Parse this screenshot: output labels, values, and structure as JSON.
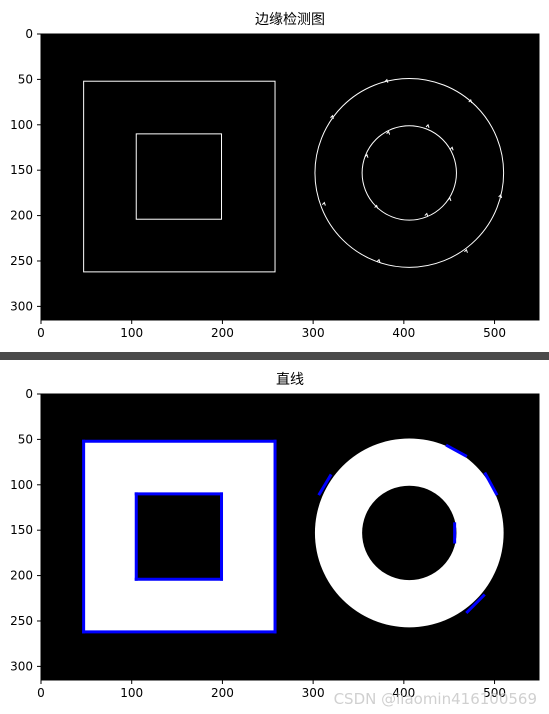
{
  "chart_data": [
    {
      "type": "image",
      "title": "边缘检测图",
      "xlim": [
        0,
        549
      ],
      "ylim": [
        315,
        0
      ],
      "xticks": [
        0,
        100,
        200,
        300,
        400,
        500
      ],
      "yticks": [
        0,
        50,
        100,
        150,
        200,
        250,
        300
      ],
      "shapes": {
        "outer_square": [
          47,
          52,
          258,
          262
        ],
        "inner_square": [
          105,
          110,
          199,
          204
        ],
        "ring_center": [
          406,
          153
        ],
        "ring_outer_r": 104,
        "ring_inner_r": 52
      },
      "colors": {
        "background": "#000000",
        "edges": "#ffffff"
      }
    },
    {
      "type": "image",
      "title": "直线",
      "xlim": [
        0,
        549
      ],
      "ylim": [
        315,
        0
      ],
      "xticks": [
        0,
        100,
        200,
        300,
        400,
        500
      ],
      "yticks": [
        0,
        50,
        100,
        150,
        200,
        250,
        300
      ],
      "shapes": {
        "outer_square": [
          47,
          52,
          258,
          262
        ],
        "inner_square": [
          105,
          110,
          199,
          204
        ],
        "ring_center": [
          406,
          153
        ],
        "ring_outer_r": 104,
        "ring_inner_r": 52
      },
      "lines": [
        [
          [
            47,
            52
          ],
          [
            258,
            52
          ]
        ],
        [
          [
            258,
            52
          ],
          [
            258,
            262
          ]
        ],
        [
          [
            258,
            262
          ],
          [
            47,
            262
          ]
        ],
        [
          [
            47,
            262
          ],
          [
            47,
            52
          ]
        ],
        [
          [
            105,
            110
          ],
          [
            199,
            110
          ]
        ],
        [
          [
            199,
            110
          ],
          [
            199,
            204
          ]
        ],
        [
          [
            199,
            204
          ],
          [
            105,
            204
          ]
        ],
        [
          [
            105,
            204
          ],
          [
            105,
            110
          ]
        ],
        [
          [
            307,
            110
          ],
          [
            319,
            90
          ]
        ],
        [
          [
            448,
            57
          ],
          [
            468,
            68
          ]
        ],
        [
          [
            490,
            88
          ],
          [
            502,
            110
          ]
        ],
        [
          [
            456,
            143
          ],
          [
            456,
            163
          ]
        ],
        [
          [
            470,
            240
          ],
          [
            488,
            222
          ]
        ]
      ],
      "colors": {
        "background": "#000000",
        "fill": "#ffffff",
        "lines": "#0000ff"
      }
    }
  ],
  "watermark": "CSDN @liaomin416100569"
}
